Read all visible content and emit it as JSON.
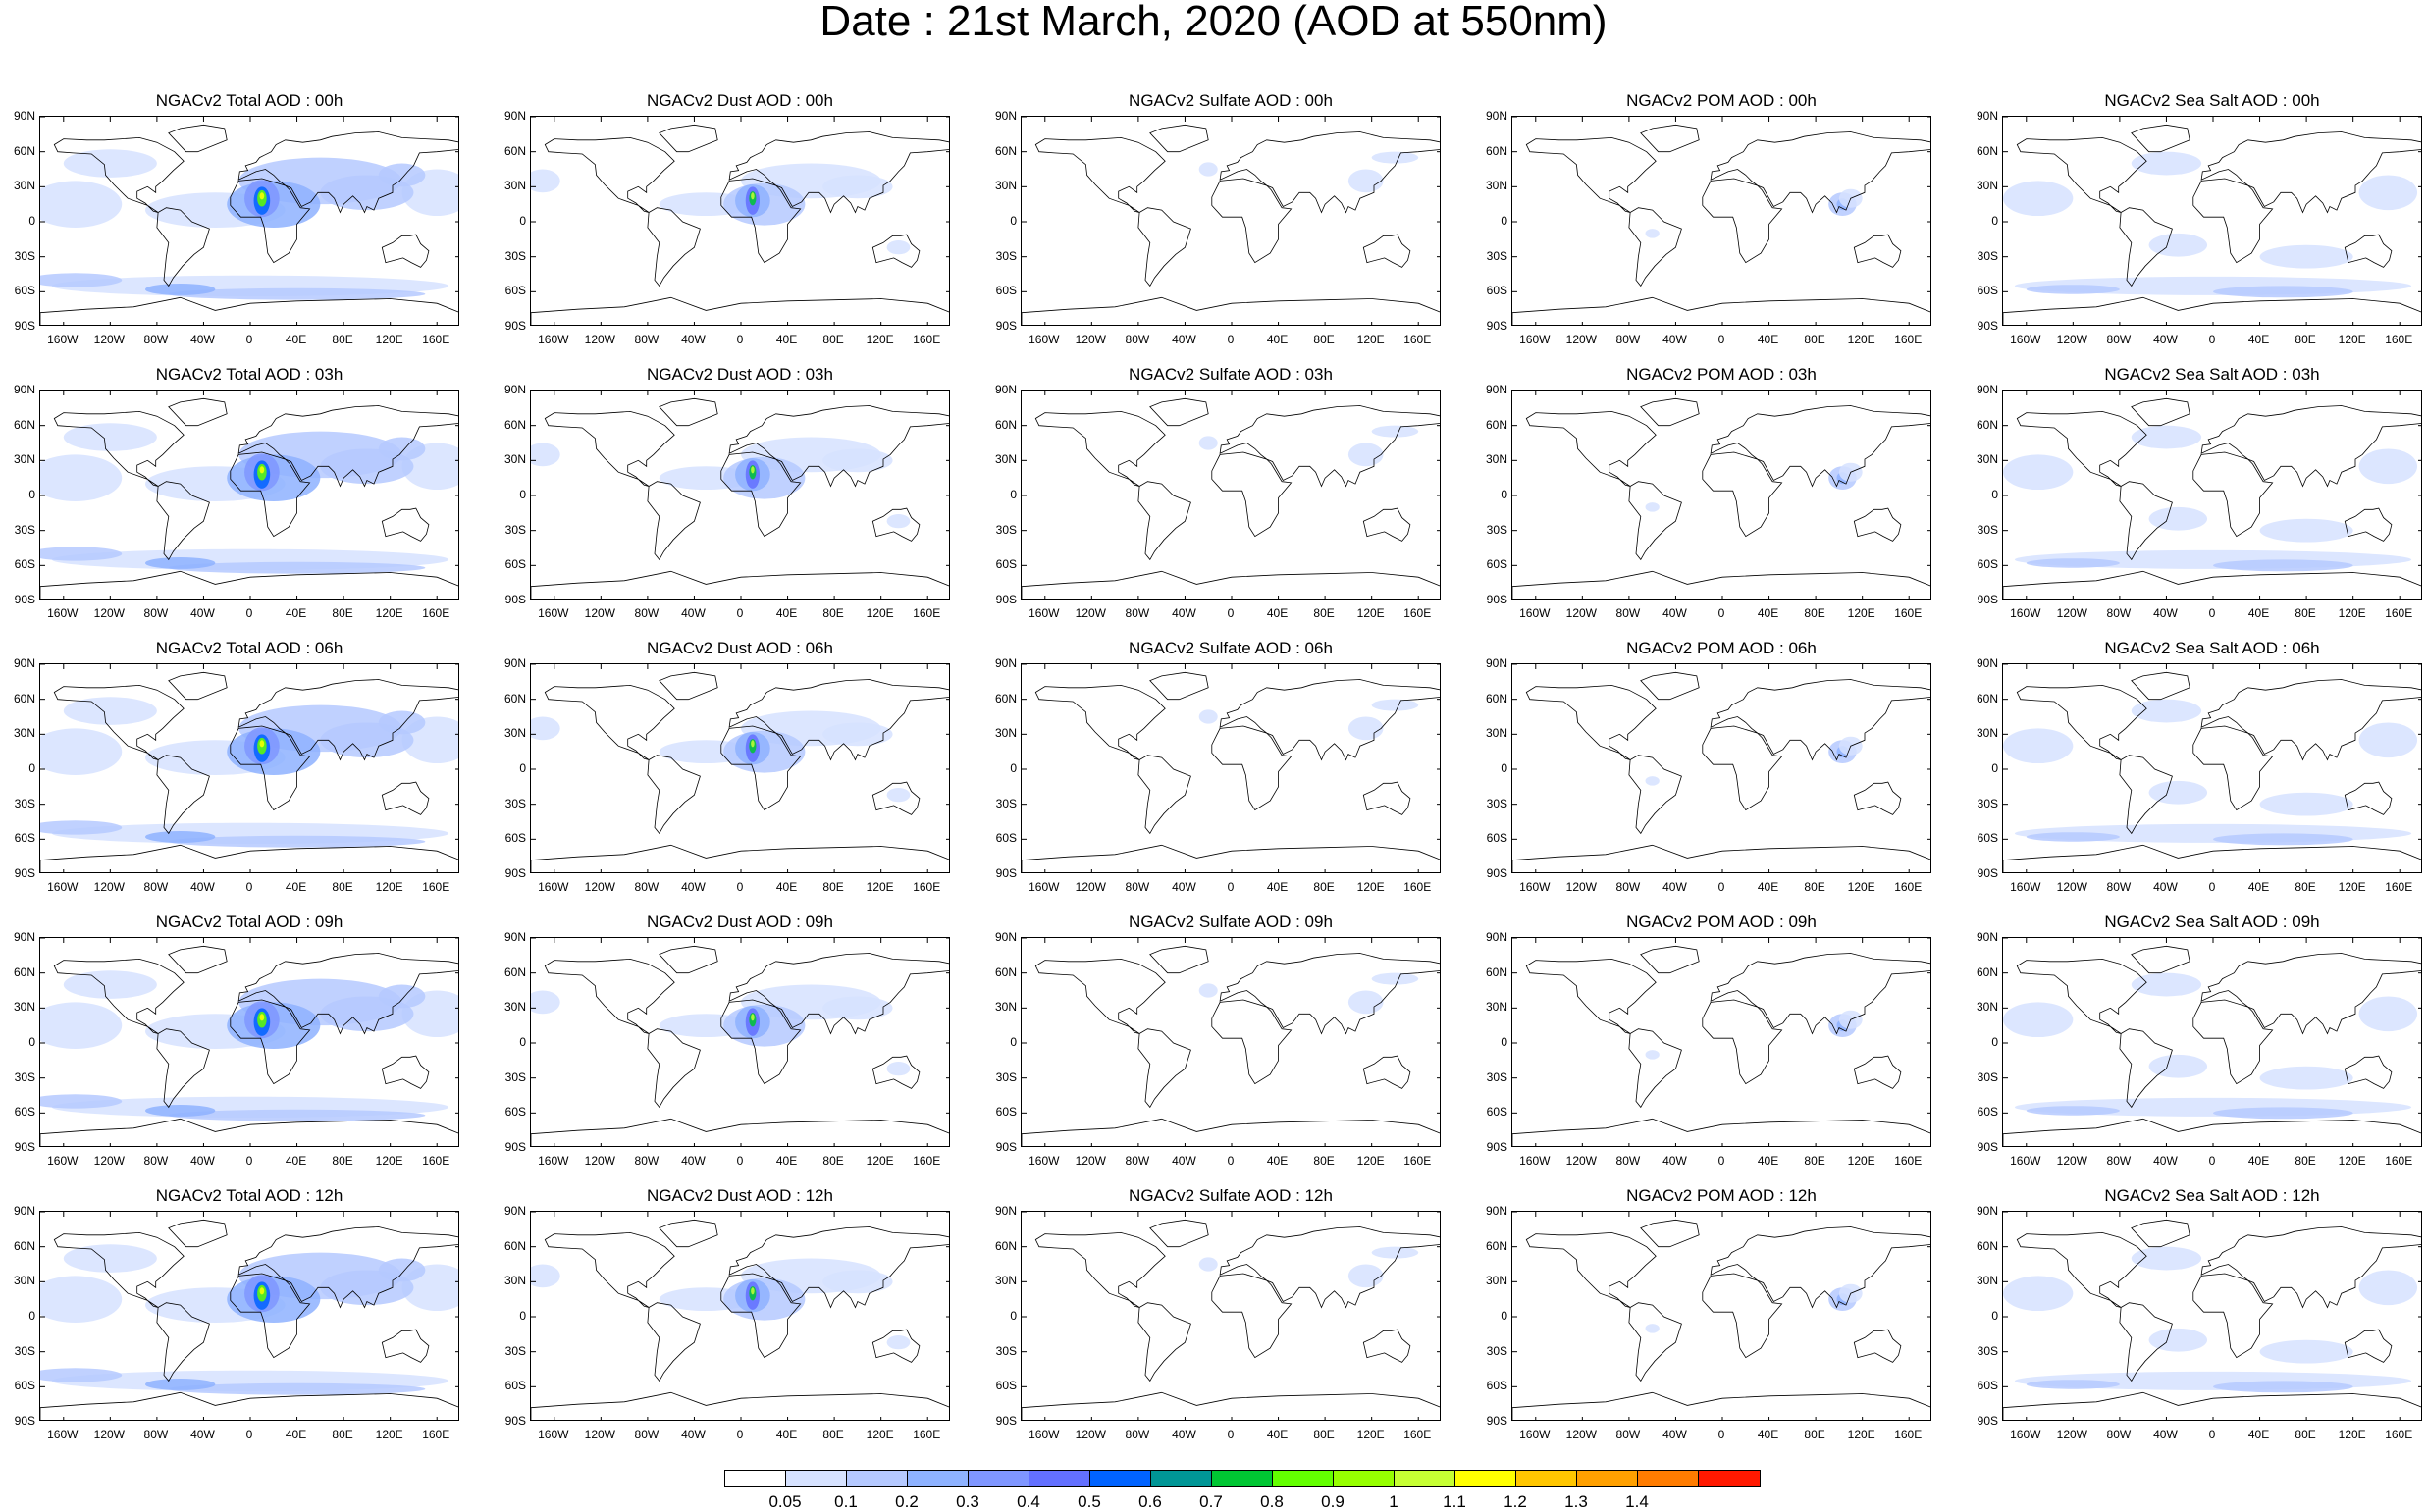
{
  "title": "Date : 21st March, 2020 (AOD at 550nm)",
  "lat_ticks": [
    "90N",
    "60N",
    "30N",
    "0",
    "30S",
    "60S",
    "90S"
  ],
  "lon_ticks": [
    "160W",
    "120W",
    "80W",
    "40W",
    "0",
    "40E",
    "80E",
    "120E",
    "160E"
  ],
  "panels": [
    {
      "title": "NGACv2 Total AOD : 00h",
      "species": "total"
    },
    {
      "title": "NGACv2 Dust AOD : 00h",
      "species": "dust"
    },
    {
      "title": "NGACv2 Sulfate AOD : 00h",
      "species": "sulfate"
    },
    {
      "title": "NGACv2 POM AOD : 00h",
      "species": "pom"
    },
    {
      "title": "NGACv2 Sea Salt AOD : 00h",
      "species": "seasalt"
    },
    {
      "title": "NGACv2 Total AOD : 03h",
      "species": "total"
    },
    {
      "title": "NGACv2 Dust AOD : 03h",
      "species": "dust"
    },
    {
      "title": "NGACv2 Sulfate AOD : 03h",
      "species": "sulfate"
    },
    {
      "title": "NGACv2 POM AOD : 03h",
      "species": "pom"
    },
    {
      "title": "NGACv2 Sea Salt AOD : 03h",
      "species": "seasalt"
    },
    {
      "title": "NGACv2 Total AOD : 06h",
      "species": "total"
    },
    {
      "title": "NGACv2 Dust AOD : 06h",
      "species": "dust"
    },
    {
      "title": "NGACv2 Sulfate AOD : 06h",
      "species": "sulfate"
    },
    {
      "title": "NGACv2 POM AOD : 06h",
      "species": "pom"
    },
    {
      "title": "NGACv2 Sea Salt AOD : 06h",
      "species": "seasalt"
    },
    {
      "title": "NGACv2 Total AOD : 09h",
      "species": "total"
    },
    {
      "title": "NGACv2 Dust AOD : 09h",
      "species": "dust"
    },
    {
      "title": "NGACv2 Sulfate AOD : 09h",
      "species": "sulfate"
    },
    {
      "title": "NGACv2 POM AOD : 09h",
      "species": "pom"
    },
    {
      "title": "NGACv2 Sea Salt  AOD : 09h",
      "species": "seasalt"
    },
    {
      "title": "NGACv2 Total AOD : 12h",
      "species": "total"
    },
    {
      "title": "NGACv2 Dust AOD : 12h",
      "species": "dust"
    },
    {
      "title": "NGACv2 Sulfate AOD : 12h",
      "species": "sulfate"
    },
    {
      "title": "NGACv2 POM  AOD : 12h",
      "species": "pom"
    },
    {
      "title": "NGACv2 Sea Salt  AOD : 12h",
      "species": "seasalt"
    }
  ],
  "colorbar": {
    "labels": [
      "0.05",
      "0.1",
      "0.2",
      "0.3",
      "0.4",
      "0.5",
      "0.6",
      "0.7",
      "0.8",
      "0.9",
      "1",
      "1.1",
      "1.2",
      "1.3",
      "1.4"
    ],
    "colors": [
      "#ffffff",
      "#d6e2ff",
      "#b5c9ff",
      "#8eb2ff",
      "#7f96ff",
      "#6370ff",
      "#0063ff",
      "#009696",
      "#00c633",
      "#63ff00",
      "#96ff00",
      "#c6ff33",
      "#ffff00",
      "#ffc600",
      "#ffa000",
      "#ff7c00",
      "#ff1900"
    ]
  }
}
